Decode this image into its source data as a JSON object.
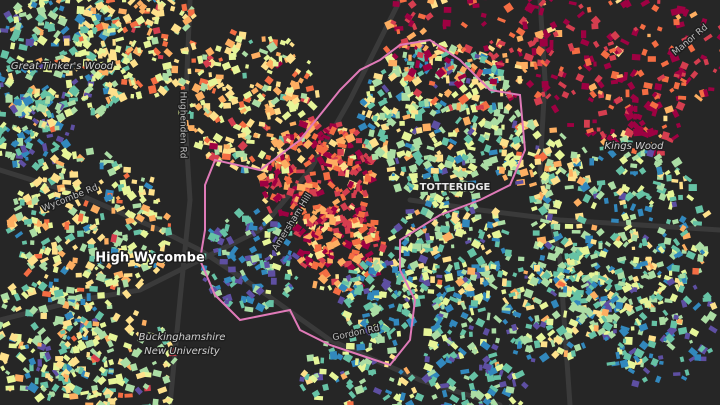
{
  "map": {
    "labels": [
      "Great Tinker's Wood",
      "Kings Wood",
      "High Wycombe",
      "Buckinghamshire",
      "New University",
      "TOTTERIDGE",
      "Amersham Hill",
      "Wycombe Rd",
      "Hughenden Rd",
      "Gordon Rd",
      "Manor Rd"
    ]
  }
}
